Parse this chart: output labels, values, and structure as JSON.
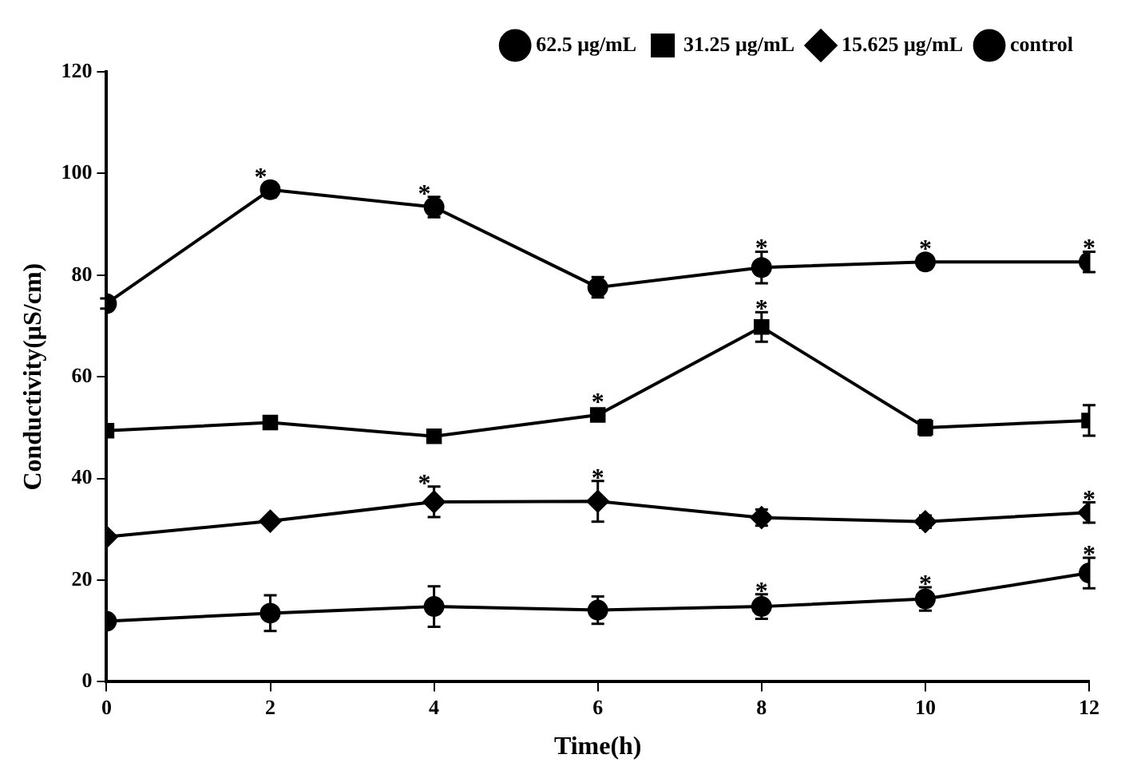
{
  "chart_data": {
    "type": "line",
    "xlabel": "Time(h)",
    "ylabel": "Conductivity(μS/cm)",
    "x": [
      0,
      2,
      4,
      6,
      8,
      10,
      12
    ],
    "series": [
      {
        "name": "62.5 μg/mL",
        "color": "#000000",
        "marker": "circle",
        "values": [
          74.4,
          96.8,
          93.4,
          77.6,
          81.5,
          82.6,
          82.6
        ],
        "errors": [
          1,
          1.5,
          2,
          2,
          3.1,
          null,
          2
        ]
      },
      {
        "name": "31.25 μg/mL",
        "color": "#000000",
        "marker": "square",
        "values": [
          49.4,
          51,
          48.3,
          52.5,
          69.8,
          50,
          51.4
        ],
        "errors": [
          null,
          null,
          null,
          null,
          2.9,
          1.5,
          3
        ]
      },
      {
        "name": "15.625 μg/mL",
        "color": "#000000",
        "marker": "diamond",
        "values": [
          28.5,
          31.6,
          35.4,
          35.5,
          32.3,
          31.5,
          33.3
        ],
        "errors": [
          null,
          null,
          3,
          4,
          1.6,
          1.2,
          2
        ]
      },
      {
        "name": "control",
        "color": "#000000",
        "marker": "circle",
        "values": [
          11.9,
          13.5,
          14.8,
          14.1,
          14.8,
          16.3,
          21.4
        ],
        "errors": [
          null,
          3.5,
          4,
          2.7,
          2.4,
          2.3,
          3
        ]
      }
    ],
    "annotations": [
      {
        "text": "*",
        "x": 2,
        "y": 96.8
      },
      {
        "text": "*",
        "x": 4,
        "y": 93.4
      },
      {
        "text": "*",
        "x": 8,
        "y": 81.5
      },
      {
        "text": "*",
        "x": 10,
        "y": 82.6
      },
      {
        "text": "*",
        "x": 12,
        "y": 82.6
      },
      {
        "text": "*",
        "x": 8,
        "y": 69.8
      },
      {
        "text": "*",
        "x": 6,
        "y": 52.5
      },
      {
        "text": "*",
        "x": 4,
        "y": 35.4
      },
      {
        "text": "*",
        "x": 6,
        "y": 35.5
      },
      {
        "text": "*",
        "x": 12,
        "y": 33.3
      },
      {
        "text": "*",
        "x": 8,
        "y": 14.8
      },
      {
        "text": "*",
        "x": 10,
        "y": 16.3
      },
      {
        "text": "*",
        "x": 12,
        "y": 21.4
      }
    ],
    "xlim": [
      0,
      12
    ],
    "xticks": [
      0,
      2,
      4,
      6,
      8,
      10,
      12
    ],
    "ylim": [
      0,
      120
    ],
    "yticks": [
      0,
      20,
      40,
      60,
      80,
      100,
      120
    ],
    "grid": false,
    "legend": "top right",
    "line_style": "solid"
  }
}
